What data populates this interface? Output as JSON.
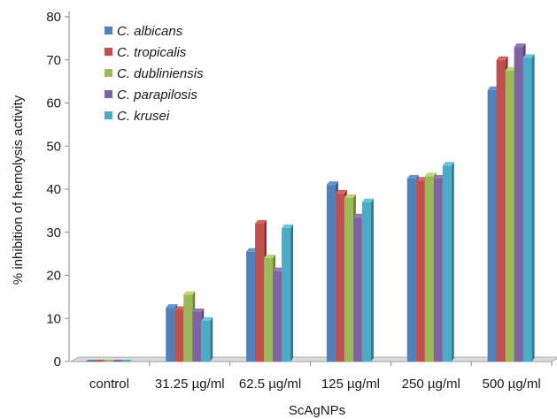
{
  "chart_data": {
    "type": "bar",
    "xlabel": "ScAgNPs",
    "ylabel": "% inhibition of hemolysis activity",
    "ylim": [
      0,
      80
    ],
    "yticks": [
      0,
      10,
      20,
      30,
      40,
      50,
      60,
      70,
      80
    ],
    "categories": [
      "control",
      "31.25 µg/ml",
      "62.5 µg/ml",
      "125 µg/ml",
      "250 µg/ml",
      "500 µg/ml"
    ],
    "series": [
      {
        "name": "C. albicans",
        "color": "#4f81bd",
        "values": [
          0,
          12.5,
          25.5,
          41,
          42.5,
          63
        ]
      },
      {
        "name": "C. tropicalis",
        "color": "#c0504d",
        "values": [
          0,
          12,
          32,
          39,
          42,
          70
        ]
      },
      {
        "name": "C. dubliniensis",
        "color": "#9bbb59",
        "values": [
          0,
          15.5,
          24,
          38,
          43,
          67.5
        ]
      },
      {
        "name": "C. parapilosis",
        "color": "#8064a2",
        "values": [
          0,
          11.5,
          21,
          33.5,
          42.5,
          73
        ]
      },
      {
        "name": "C. krusei",
        "color": "#4bacc6",
        "values": [
          0,
          9.5,
          31,
          37,
          45.5,
          70.5
        ]
      }
    ],
    "legend_position": "top-left",
    "grid": false,
    "style": "3d-bar"
  }
}
